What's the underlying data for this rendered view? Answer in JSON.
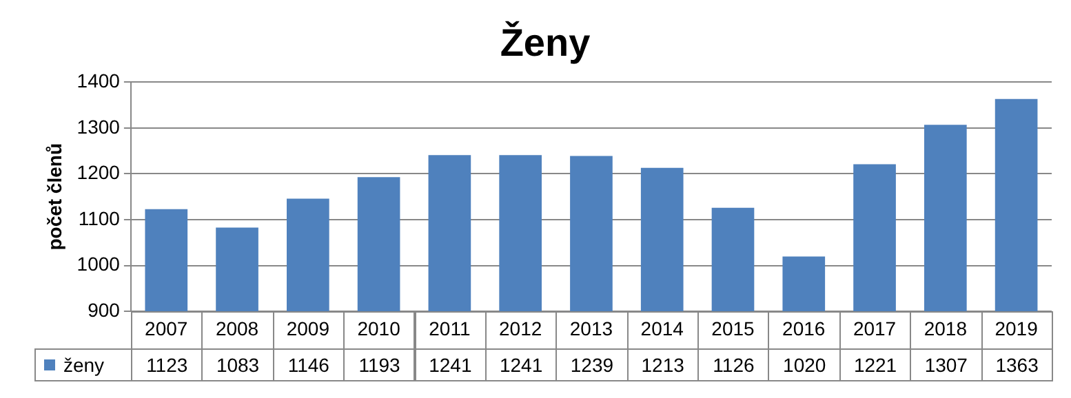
{
  "chart_data": {
    "type": "bar",
    "title": "Ženy",
    "ylabel": "počet členů",
    "categories": [
      "2007",
      "2008",
      "2009",
      "2010",
      "2011",
      "2012",
      "2013",
      "2014",
      "2015",
      "2016",
      "2017",
      "2018",
      "2019"
    ],
    "series": [
      {
        "name": "ženy",
        "color": "#4f81bd",
        "values": [
          1123,
          1083,
          1146,
          1193,
          1241,
          1241,
          1239,
          1213,
          1126,
          1020,
          1221,
          1307,
          1363
        ]
      }
    ],
    "ylim": [
      900,
      1400
    ],
    "yticks": [
      900,
      1000,
      1100,
      1200,
      1300,
      1400
    ],
    "grid": "y",
    "data_labels": true
  }
}
